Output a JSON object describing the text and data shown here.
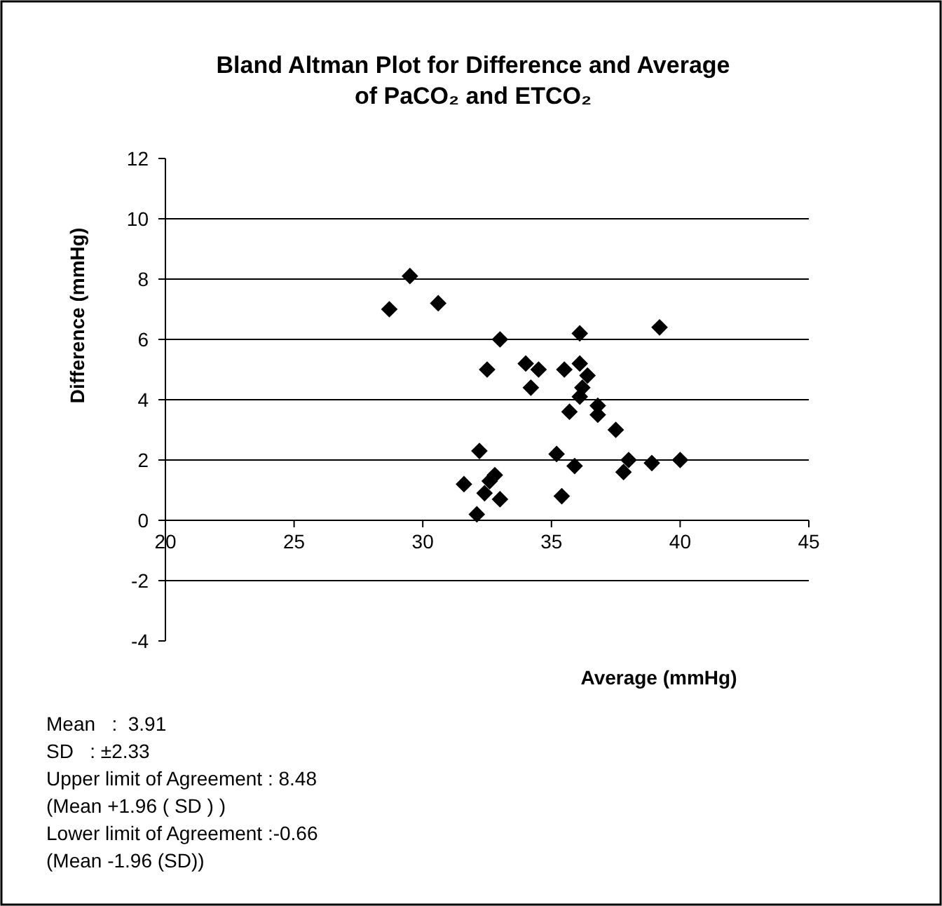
{
  "chart_data": {
    "type": "scatter",
    "title": "Bland Altman Plot for  Difference and Average\nof PaCO₂ and ETCO₂",
    "xlabel": "Average  (mmHg)",
    "ylabel": "Difference (mmHg)",
    "x": [
      28.7,
      29.5,
      30.6,
      33.0,
      36.1,
      39.2,
      32.5,
      34.0,
      34.5,
      35.5,
      36.1,
      36.4,
      36.2,
      34.2,
      36.1,
      36.8,
      36.8,
      35.7,
      37.5,
      38.0,
      37.8,
      38.9,
      40.0,
      35.2,
      35.9,
      32.2,
      31.6,
      32.8,
      32.6,
      32.4,
      33.0,
      35.4,
      32.1
    ],
    "values": [
      7.0,
      8.1,
      7.2,
      6.0,
      6.2,
      6.4,
      5.0,
      5.2,
      5.0,
      5.0,
      5.2,
      4.8,
      4.4,
      4.4,
      4.1,
      3.8,
      3.5,
      3.6,
      3.0,
      2.0,
      1.6,
      1.9,
      2.0,
      2.2,
      1.8,
      2.3,
      1.2,
      1.5,
      1.3,
      0.9,
      0.7,
      0.8,
      0.2
    ],
    "color": "#000000",
    "marker": "diamond",
    "xlim": [
      20,
      45
    ],
    "xticks": [
      20,
      25,
      30,
      35,
      40,
      45
    ],
    "ylim": [
      -4,
      12
    ],
    "yticks": [
      -4,
      -2,
      0,
      2,
      4,
      6,
      8,
      10,
      12
    ],
    "grid": "y",
    "annotations": [
      "Mean   :  3.91",
      "SD   : ±2.33",
      "Upper limit of Agreement : 8.48",
      "(Mean +1.96 ( SD ) )",
      "Lower limit of Agreement :-0.66",
      "(Mean -1.96 (SD))"
    ]
  }
}
